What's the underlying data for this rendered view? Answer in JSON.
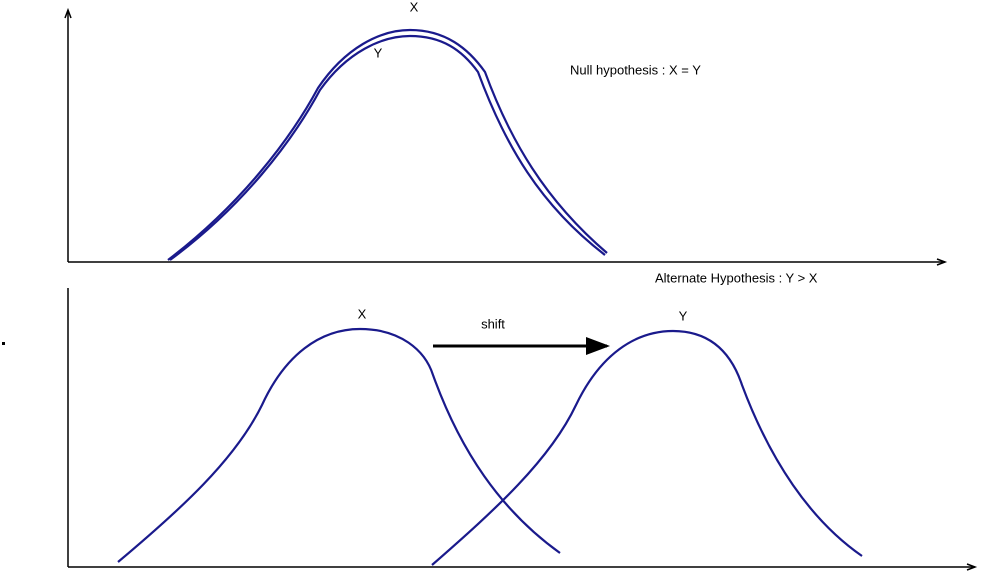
{
  "null_panel": {
    "label_x": "X",
    "label_y": "Y",
    "caption": "Null hypothesis : X = Y"
  },
  "alternate_panel": {
    "caption": "Alternate Hypothesis : Y > X",
    "label_x": "X",
    "arrow_label": "shift",
    "label_y": "Y"
  }
}
